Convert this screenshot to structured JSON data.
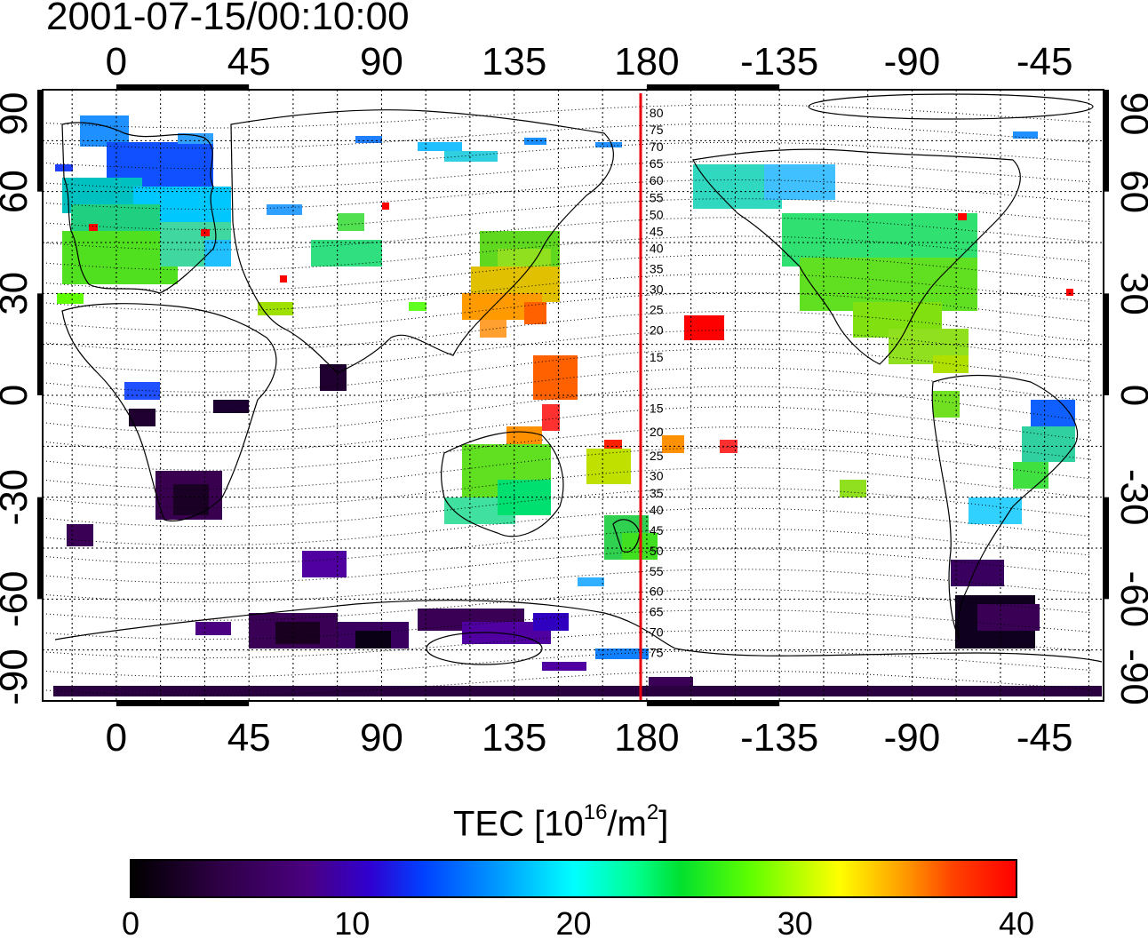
{
  "figure": {
    "timestamp": "2001-07-15/00:10:00",
    "colorbar_title": {
      "main": "TEC  [10",
      "exp": "16",
      "unit": "/m",
      "unit_exp": "2",
      "close": "]"
    }
  },
  "axes": {
    "top_lon_labels": [
      "0",
      "45",
      "90",
      "135",
      "180",
      "-135",
      "-90",
      "-45"
    ],
    "bottom_lon_labels": [
      "0",
      "45",
      "90",
      "135",
      "180",
      "-135",
      "-90",
      "-45"
    ],
    "lat_labels": [
      "90",
      "60",
      "30",
      "0",
      "-30",
      "-60",
      "-90"
    ],
    "lon_tick_values": [
      0,
      45,
      90,
      135,
      180,
      225,
      270,
      315
    ],
    "lat_tick_values": [
      90,
      60,
      30,
      0,
      -30,
      -60,
      -90
    ],
    "lon_range": [
      -25,
      335
    ],
    "lat_range": [
      -90,
      90
    ],
    "grid": true,
    "grid_spacing_deg": 15
  },
  "meridian_line": {
    "lon": 180,
    "color": "#e8000b"
  },
  "contour_labels_north": [
    "80",
    "75",
    "70",
    "65",
    "60",
    "55",
    "50",
    "45",
    "40",
    "35",
    "30",
    "25",
    "20",
    "15"
  ],
  "contour_labels_south": [
    "15",
    "20",
    "25",
    "30",
    "35",
    "40",
    "45",
    "50",
    "55",
    "60",
    "65",
    "70",
    "75"
  ],
  "contour_label_lats": {
    "north": [
      83,
      78,
      73,
      68,
      63,
      58,
      53,
      48,
      43,
      37,
      31,
      25,
      19,
      11
    ],
    "south": [
      -4,
      -11,
      -18,
      -24,
      -29,
      -34,
      -40,
      -46,
      -52,
      -58,
      -64,
      -70,
      -76
    ]
  },
  "colorbar": {
    "min": 0,
    "max": 40,
    "tick_labels": [
      "0",
      "10",
      "20",
      "30",
      "40"
    ],
    "tick_values": [
      0,
      10,
      20,
      30,
      40
    ],
    "colors": [
      "#000000",
      "#3a0055",
      "#5a0099",
      "#0000ff",
      "#0080ff",
      "#00ffff",
      "#00ff80",
      "#00d000",
      "#80ff00",
      "#ffff00",
      "#ff9900",
      "#ff0000"
    ]
  },
  "chart_data": {
    "type": "heatmap",
    "title": "2001-07-15/00:10:00",
    "colorbar_label": "TEC [10^16/m^2]",
    "value_range": [
      0,
      40
    ],
    "x_axis": "longitude",
    "y_axis": "latitude",
    "regions": [
      {
        "lon": [
          -15,
          45
        ],
        "lat": [
          35,
          80
        ],
        "tec": [
          10,
          23
        ]
      },
      {
        "lon": [
          -20,
          0
        ],
        "lat": [
          65,
          80
        ],
        "tec": [
          12,
          15
        ]
      },
      {
        "lon": [
          20,
          40
        ],
        "lat": [
          60,
          78
        ],
        "tec": [
          8,
          12
        ]
      },
      {
        "lon": [
          120,
          150
        ],
        "lat": [
          15,
          50
        ],
        "tec": [
          25,
          36
        ]
      },
      {
        "lon": [
          140,
          160
        ],
        "lat": [
          -10,
          25
        ],
        "tec": [
          30,
          40
        ]
      },
      {
        "lon": [
          110,
          150
        ],
        "lat": [
          -45,
          -15
        ],
        "tec": [
          18,
          28
        ]
      },
      {
        "lon": [
          160,
          180
        ],
        "lat": [
          -50,
          -15
        ],
        "tec": [
          20,
          30
        ]
      },
      {
        "lon": [
          -125,
          -65
        ],
        "lat": [
          20,
          55
        ],
        "tec": [
          19,
          28
        ]
      },
      {
        "lon": [
          -155,
          -145
        ],
        "lat": [
          18,
          24
        ],
        "tec": [
          38,
          40
        ]
      },
      {
        "lon": [
          -65,
          -35
        ],
        "lat": [
          -35,
          5
        ],
        "tec": [
          12,
          24
        ]
      },
      {
        "lon": [
          -75,
          -55
        ],
        "lat": [
          -80,
          -45
        ],
        "tec": [
          0,
          3
        ]
      },
      {
        "lon": [
          15,
          35
        ],
        "lat": [
          -35,
          -20
        ],
        "tec": [
          1,
          4
        ]
      },
      {
        "lon": [
          40,
          90
        ],
        "lat": [
          -80,
          -60
        ],
        "tec": [
          2,
          6
        ]
      },
      {
        "lon": [
          80,
          160
        ],
        "lat": [
          -80,
          -60
        ],
        "tec": [
          3,
          8
        ]
      },
      {
        "lon": [
          -20,
          335
        ],
        "lat": [
          -90,
          -87
        ],
        "tec": [
          0,
          3
        ]
      }
    ]
  }
}
